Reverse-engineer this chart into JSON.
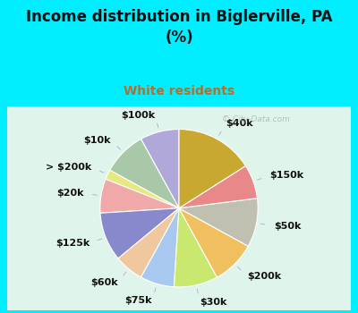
{
  "title": "Income distribution in Biglerville, PA\n(%)",
  "subtitle": "White residents",
  "title_color": "#111111",
  "subtitle_color": "#b07030",
  "bg_cyan": "#00eeff",
  "bg_chart": "#e0f5ee",
  "watermark": "© City-Data.com",
  "labels": [
    "$100k",
    "$10k",
    "> $200k",
    "$20k",
    "$125k",
    "$60k",
    "$75k",
    "$30k",
    "$200k",
    "$50k",
    "$150k",
    "$40k"
  ],
  "values": [
    8,
    9,
    2,
    7,
    10,
    6,
    7,
    9,
    9,
    10,
    7,
    16
  ],
  "colors": [
    "#b0a8d8",
    "#a8c8a8",
    "#e8e880",
    "#f0a8a8",
    "#8888cc",
    "#f0c8a0",
    "#a8c8f0",
    "#c8e870",
    "#f0c060",
    "#c0c0b0",
    "#e88888",
    "#c8a830"
  ],
  "startangle": 90,
  "label_fontsize": 8,
  "label_distance": 1.22
}
